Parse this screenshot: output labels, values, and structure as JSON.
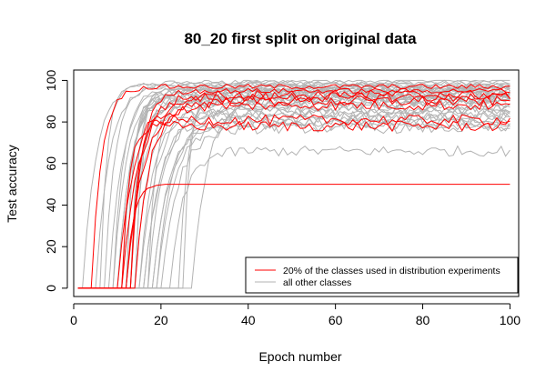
{
  "chart_data": {
    "type": "line",
    "title": "80_20 first split on original data",
    "xlabel": "Epoch number",
    "ylabel": "Test accuracy",
    "xlim": [
      0,
      102
    ],
    "ylim": [
      -4,
      105
    ],
    "xticks": [
      0,
      20,
      40,
      60,
      80,
      100
    ],
    "yticks": [
      0,
      20,
      40,
      60,
      80,
      100
    ],
    "grid": false,
    "legend_position": "bottom-right",
    "legend": [
      {
        "label": "20% of the classes used in distribution experiments",
        "color": "#ff0000"
      },
      {
        "label": "all other classes",
        "color": "#b3b3b3"
      }
    ],
    "colors": {
      "highlight": "#ff0000",
      "other": "#b3b3b3",
      "axis": "#000000"
    },
    "highlight_groups": [
      {
        "name": "20% of the classes used in distribution experiments",
        "count": 9,
        "final_values": [
          97,
          93,
          92,
          90,
          81,
          78,
          50,
          95,
          88
        ],
        "onset_epochs": [
          4,
          10,
          11,
          12,
          13,
          11,
          12,
          13,
          14
        ]
      },
      {
        "name": "all other classes",
        "count": 36,
        "final_values": [
          99,
          98,
          98,
          97,
          97,
          96,
          96,
          95,
          95,
          94,
          94,
          93,
          93,
          92,
          92,
          91,
          91,
          90,
          90,
          89,
          88,
          87,
          86,
          85,
          84,
          83,
          82,
          81,
          80,
          79,
          78,
          77,
          66,
          100,
          96,
          94
        ],
        "onset_epochs": [
          2,
          5,
          6,
          7,
          8,
          9,
          9,
          10,
          10,
          11,
          11,
          11,
          12,
          12,
          12,
          13,
          13,
          13,
          14,
          14,
          14,
          15,
          15,
          16,
          16,
          17,
          17,
          18,
          18,
          19,
          19,
          20,
          22,
          24,
          25,
          27
        ]
      }
    ]
  }
}
